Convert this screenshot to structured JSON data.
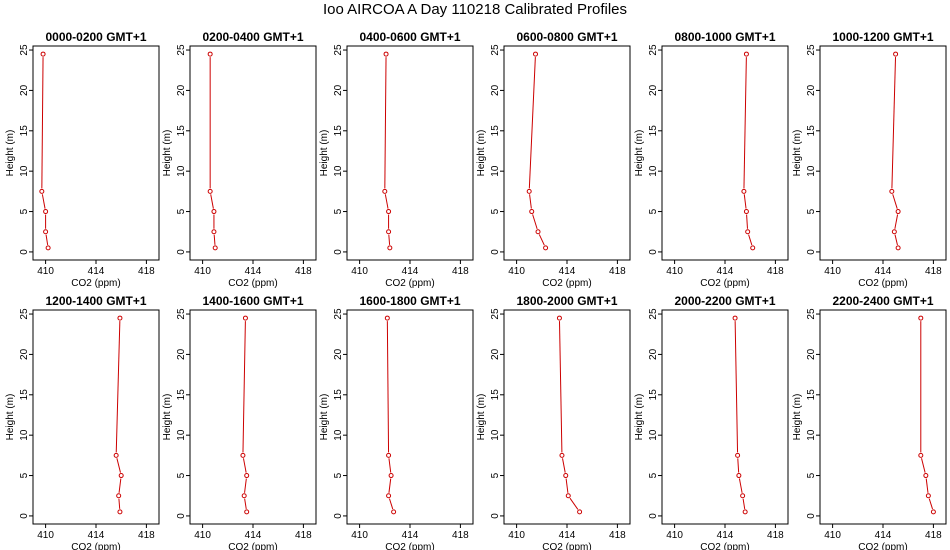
{
  "figure_title": "Ioo AIRCOA A  Day 110218  Calibrated Profiles",
  "colors": {
    "series": "#cc0000",
    "axis": "#000000"
  },
  "chart_data": [
    {
      "type": "line",
      "title": "0000-0200 GMT+1",
      "xlabel": "CO2 (ppm)",
      "ylabel": "Height (m)",
      "xlim": [
        409,
        419
      ],
      "ylim": [
        -1,
        25.5
      ],
      "xticks": [
        410,
        414,
        418
      ],
      "yticks": [
        0,
        5,
        10,
        15,
        20,
        25
      ],
      "x": [
        410.2,
        410.0,
        410.0,
        409.7,
        409.8
      ],
      "y": [
        0.5,
        2.5,
        5,
        7.5,
        24.5
      ]
    },
    {
      "type": "line",
      "title": "0200-0400 GMT+1",
      "xlabel": "CO2 (ppm)",
      "ylabel": "Height (m)",
      "xlim": [
        409,
        419
      ],
      "ylim": [
        -1,
        25.5
      ],
      "xticks": [
        410,
        414,
        418
      ],
      "yticks": [
        0,
        5,
        10,
        15,
        20,
        25
      ],
      "x": [
        411.0,
        410.9,
        410.9,
        410.6,
        410.6
      ],
      "y": [
        0.5,
        2.5,
        5,
        7.5,
        24.5
      ]
    },
    {
      "type": "line",
      "title": "0400-0600 GMT+1",
      "xlabel": "CO2 (ppm)",
      "ylabel": "Height (m)",
      "xlim": [
        409,
        419
      ],
      "ylim": [
        -1,
        25.5
      ],
      "xticks": [
        410,
        414,
        418
      ],
      "yticks": [
        0,
        5,
        10,
        15,
        20,
        25
      ],
      "x": [
        412.4,
        412.3,
        412.3,
        412.0,
        412.1
      ],
      "y": [
        0.5,
        2.5,
        5,
        7.5,
        24.5
      ]
    },
    {
      "type": "line",
      "title": "0600-0800 GMT+1",
      "xlabel": "CO2 (ppm)",
      "ylabel": "Height (m)",
      "xlim": [
        409,
        419
      ],
      "ylim": [
        -1,
        25.5
      ],
      "xticks": [
        410,
        414,
        418
      ],
      "yticks": [
        0,
        5,
        10,
        15,
        20,
        25
      ],
      "x": [
        412.3,
        411.7,
        411.2,
        411.0,
        411.5
      ],
      "y": [
        0.5,
        2.5,
        5,
        7.5,
        24.5
      ]
    },
    {
      "type": "line",
      "title": "0800-1000 GMT+1",
      "xlabel": "CO2 (ppm)",
      "ylabel": "Height (m)",
      "xlim": [
        409,
        419
      ],
      "ylim": [
        -1,
        25.5
      ],
      "xticks": [
        410,
        414,
        418
      ],
      "yticks": [
        0,
        5,
        10,
        15,
        20,
        25
      ],
      "x": [
        416.2,
        415.8,
        415.7,
        415.5,
        415.7
      ],
      "y": [
        0.5,
        2.5,
        5,
        7.5,
        24.5
      ]
    },
    {
      "type": "line",
      "title": "1000-1200 GMT+1",
      "xlabel": "CO2 (ppm)",
      "ylabel": "Height (m)",
      "xlim": [
        409,
        419
      ],
      "ylim": [
        -1,
        25.5
      ],
      "xticks": [
        410,
        414,
        418
      ],
      "yticks": [
        0,
        5,
        10,
        15,
        20,
        25
      ],
      "x": [
        415.2,
        414.9,
        415.2,
        414.7,
        415.0
      ],
      "y": [
        0.5,
        2.5,
        5,
        7.5,
        24.5
      ]
    },
    {
      "type": "line",
      "title": "1200-1400 GMT+1",
      "xlabel": "CO2 (ppm)",
      "ylabel": "Height (m)",
      "xlim": [
        409,
        419
      ],
      "ylim": [
        -1,
        25.5
      ],
      "xticks": [
        410,
        414,
        418
      ],
      "yticks": [
        0,
        5,
        10,
        15,
        20,
        25
      ],
      "x": [
        415.9,
        415.8,
        416.0,
        415.6,
        415.9
      ],
      "y": [
        0.5,
        2.5,
        5,
        7.5,
        24.5
      ]
    },
    {
      "type": "line",
      "title": "1400-1600 GMT+1",
      "xlabel": "CO2 (ppm)",
      "ylabel": "Height (m)",
      "xlim": [
        409,
        419
      ],
      "ylim": [
        -1,
        25.5
      ],
      "xticks": [
        410,
        414,
        418
      ],
      "yticks": [
        0,
        5,
        10,
        15,
        20,
        25
      ],
      "x": [
        413.5,
        413.3,
        413.5,
        413.2,
        413.4
      ],
      "y": [
        0.5,
        2.5,
        5,
        7.5,
        24.5
      ]
    },
    {
      "type": "line",
      "title": "1600-1800 GMT+1",
      "xlabel": "CO2 (ppm)",
      "ylabel": "Height (m)",
      "xlim": [
        409,
        419
      ],
      "ylim": [
        -1,
        25.5
      ],
      "xticks": [
        410,
        414,
        418
      ],
      "yticks": [
        0,
        5,
        10,
        15,
        20,
        25
      ],
      "x": [
        412.7,
        412.3,
        412.5,
        412.3,
        412.2
      ],
      "y": [
        0.5,
        2.5,
        5,
        7.5,
        24.5
      ]
    },
    {
      "type": "line",
      "title": "1800-2000 GMT+1",
      "xlabel": "CO2 (ppm)",
      "ylabel": "Height (m)",
      "xlim": [
        409,
        419
      ],
      "ylim": [
        -1,
        25.5
      ],
      "xticks": [
        410,
        414,
        418
      ],
      "yticks": [
        0,
        5,
        10,
        15,
        20,
        25
      ],
      "x": [
        415.0,
        414.1,
        413.9,
        413.6,
        413.4
      ],
      "y": [
        0.5,
        2.5,
        5,
        7.5,
        24.5
      ]
    },
    {
      "type": "line",
      "title": "2000-2200 GMT+1",
      "xlabel": "CO2 (ppm)",
      "ylabel": "Height (m)",
      "xlim": [
        409,
        419
      ],
      "ylim": [
        -1,
        25.5
      ],
      "xticks": [
        410,
        414,
        418
      ],
      "yticks": [
        0,
        5,
        10,
        15,
        20,
        25
      ],
      "x": [
        415.6,
        415.4,
        415.1,
        415.0,
        414.8
      ],
      "y": [
        0.5,
        2.5,
        5,
        7.5,
        24.5
      ]
    },
    {
      "type": "line",
      "title": "2200-2400 GMT+1",
      "xlabel": "CO2 (ppm)",
      "ylabel": "Height (m)",
      "xlim": [
        409,
        419
      ],
      "ylim": [
        -1,
        25.5
      ],
      "xticks": [
        410,
        414,
        418
      ],
      "yticks": [
        0,
        5,
        10,
        15,
        20,
        25
      ],
      "x": [
        418.0,
        417.6,
        417.4,
        417.0,
        417.0
      ],
      "y": [
        0.5,
        2.5,
        5,
        7.5,
        24.5
      ]
    }
  ]
}
